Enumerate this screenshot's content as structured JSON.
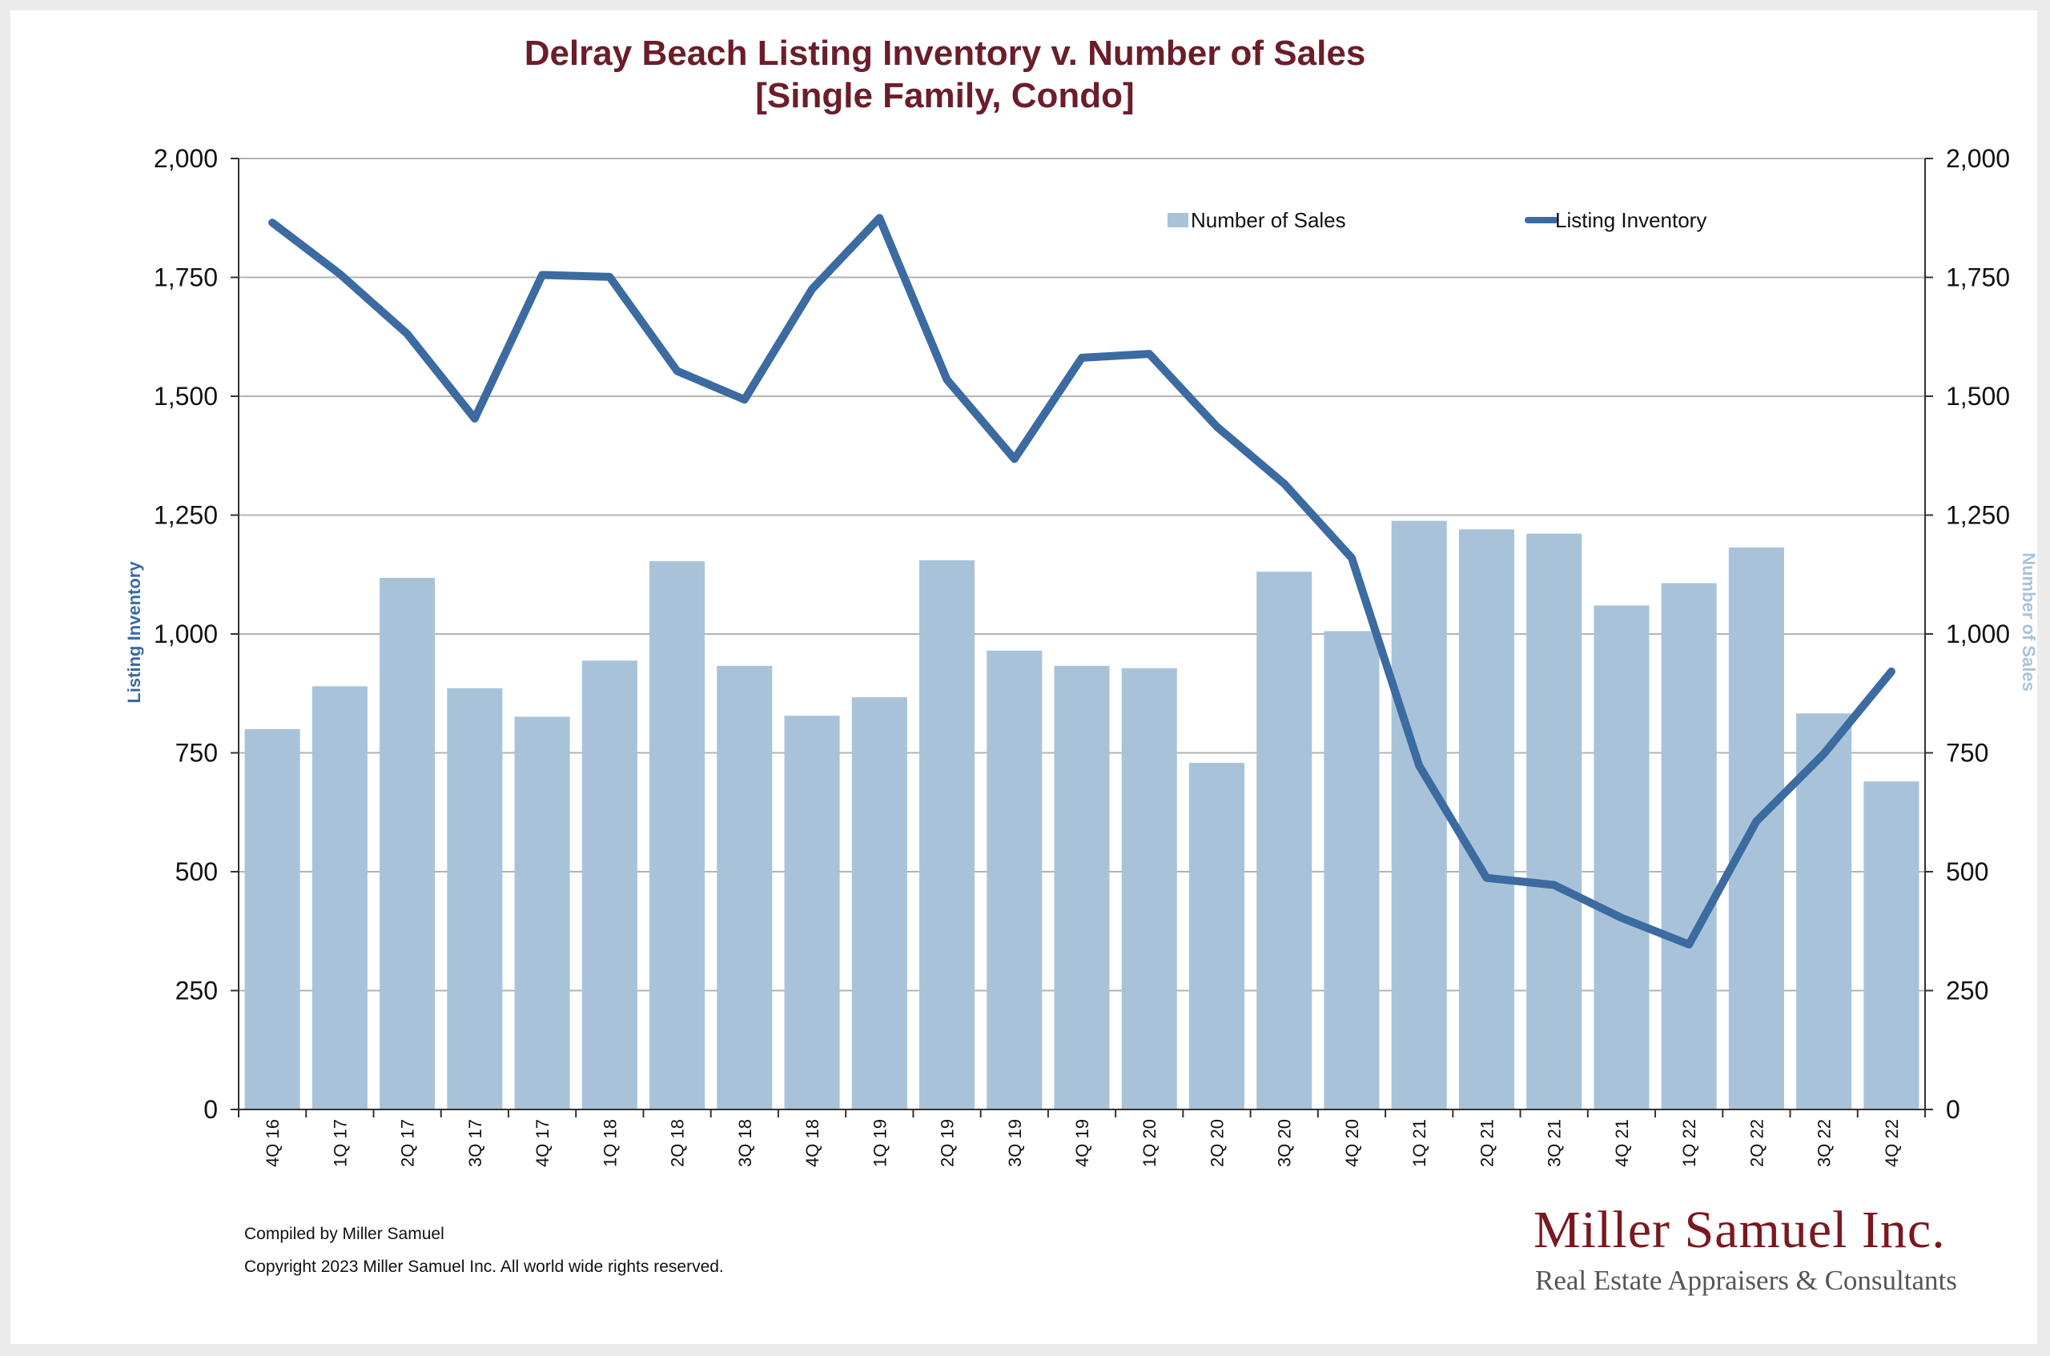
{
  "chart_data": {
    "type": "bar+line",
    "title": "Delray Beach Listing Inventory v. Number of Sales",
    "subtitle": "[Single Family, Condo]",
    "categories": [
      "4Q 16",
      "1Q 17",
      "2Q 17",
      "3Q 17",
      "4Q 17",
      "1Q 18",
      "2Q 18",
      "3Q 18",
      "4Q 18",
      "1Q 19",
      "2Q 19",
      "3Q 19",
      "4Q 19",
      "1Q 20",
      "2Q 20",
      "3Q 20",
      "4Q 20",
      "1Q 21",
      "2Q 21",
      "3Q 21",
      "4Q 21",
      "1Q 22",
      "2Q 22",
      "3Q 22",
      "4Q 22"
    ],
    "series": [
      {
        "name": "Number of Sales",
        "type": "bar",
        "axis": "right",
        "color": "#a8c3d9",
        "values": [
          800,
          890,
          1118,
          886,
          826,
          944,
          1153,
          933,
          828,
          867,
          1155,
          965,
          933,
          928,
          729,
          1131,
          1006,
          1238,
          1220,
          1211,
          1060,
          1107,
          1182,
          833,
          690
        ]
      },
      {
        "name": "Listing Inventory",
        "type": "line",
        "axis": "left",
        "color": "#3b6ba1",
        "values": [
          1865,
          1757,
          1631,
          1453,
          1755,
          1751,
          1553,
          1493,
          1725,
          1875,
          1535,
          1368,
          1581,
          1589,
          1436,
          1316,
          1160,
          723,
          487,
          472,
          403,
          347,
          606,
          748,
          921
        ]
      }
    ],
    "ylabel_left": "Listing Inventory",
    "ylabel_right": "Number of Sales",
    "ylim_left": [
      0,
      2000
    ],
    "ylim_right": [
      0,
      2000
    ],
    "yticks": [
      "0",
      "250",
      "500",
      "750",
      "1,000",
      "1,250",
      "1,500",
      "1,750",
      "2,000"
    ],
    "grid": "horizontal",
    "legend_placement": "top-right"
  },
  "footer": {
    "compiled_by": "Compiled by Miller Samuel",
    "copyright": "Copyright 2023 Miller Samuel Inc.  All world wide rights reserved."
  },
  "logo": {
    "name": "Miller Samuel Inc.",
    "tagline": "Real Estate Appraisers & Consultants"
  }
}
